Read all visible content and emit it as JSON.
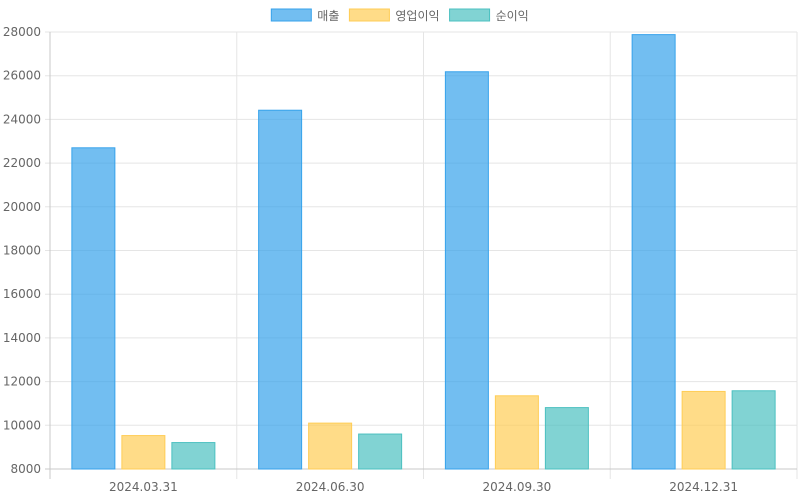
{
  "chart_data": {
    "type": "bar",
    "categories": [
      "2024.03.31",
      "2024.06.30",
      "2024.09.30",
      "2024.12.31"
    ],
    "series": [
      {
        "name": "매출",
        "values": [
          22700,
          24420,
          26180,
          27880
        ],
        "color": "#36a2eb"
      },
      {
        "name": "영업이익",
        "values": [
          9530,
          10100,
          11350,
          11550
        ],
        "color": "#ffcd56"
      },
      {
        "name": "순이익",
        "values": [
          9210,
          9600,
          10810,
          11580
        ],
        "color": "#4bc0c0"
      }
    ],
    "ylim": [
      8000,
      28000
    ],
    "yticks": [
      8000,
      10000,
      12000,
      14000,
      16000,
      18000,
      20000,
      22000,
      24000,
      26000,
      28000
    ],
    "grid": true,
    "legend_position": "top-center"
  }
}
